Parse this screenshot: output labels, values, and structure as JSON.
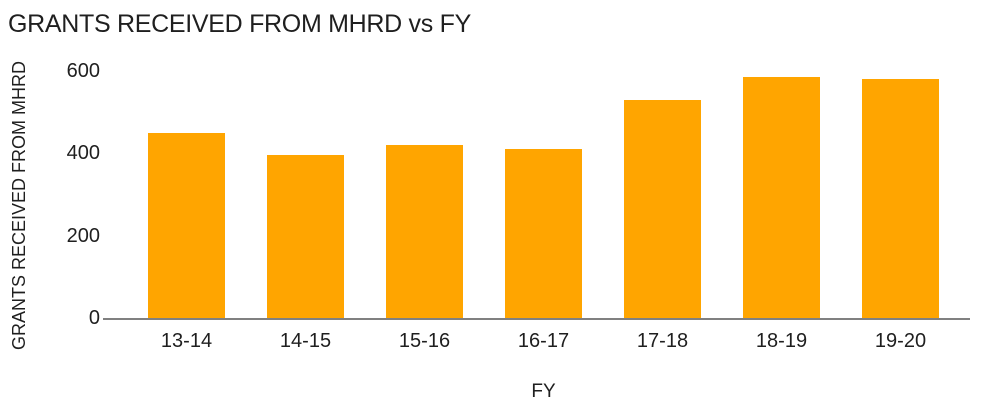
{
  "chart_data": {
    "type": "bar",
    "title": "GRANTS RECEIVED FROM MHRD vs FY",
    "xlabel": "FY",
    "ylabel": "GRANTS RECEIVED FROM MHRD",
    "categories": [
      "13-14",
      "14-15",
      "15-16",
      "16-17",
      "17-18",
      "18-19",
      "19-20"
    ],
    "values": [
      450,
      395,
      420,
      410,
      530,
      585,
      580
    ],
    "yticks": [
      0,
      200,
      400,
      600
    ],
    "ylim": [
      0,
      600
    ],
    "grid": false,
    "legend": false,
    "bar_color": "#ffa500",
    "axis_line_color": "#808080",
    "text_color": "#1f1f1f"
  }
}
